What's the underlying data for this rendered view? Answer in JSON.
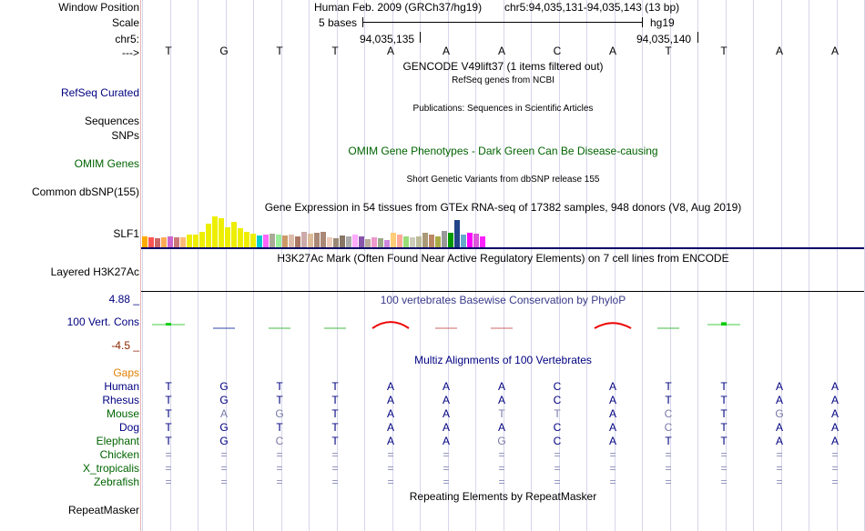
{
  "header": {
    "labels": {
      "window_position": "Window Position",
      "scale": "Scale",
      "chrom": "chr5:",
      "strand": "--->"
    },
    "assembly": "Human Feb. 2009 (GRCh37/hg19)",
    "position": "chr5:94,035,131-94,035,143 (13 bp)",
    "scale_bases": "5 bases",
    "scale_db": "hg19",
    "coord_left": "94,035,135",
    "coord_right": "94,035,140"
  },
  "bases": [
    "T",
    "G",
    "T",
    "T",
    "A",
    "A",
    "A",
    "C",
    "A",
    "T",
    "T",
    "A",
    "A"
  ],
  "tracks": {
    "gencode": {
      "title": "GENCODE V49lift37 (1 items filtered out)"
    },
    "refseq": {
      "label": "RefSeq Curated",
      "title": "RefSeq genes from NCBI"
    },
    "publications": {
      "label_sequences": "Sequences",
      "label_snps": "SNPs",
      "title": "Publications: Sequences in Scientific Articles"
    },
    "omim": {
      "label": "OMIM Genes",
      "title": "OMIM Gene Phenotypes - Dark Green Can Be Disease-causing"
    },
    "dbsnp": {
      "label": "Common dbSNP(155)",
      "title": "Short Genetic Variants from dbSNP release 155"
    },
    "gtex": {
      "label": "SLF1",
      "title": "Gene Expression in 54 tissues from GTEx RNA-seq of 17382 samples, 948 donors (V8, Aug 2019)",
      "tissue_values": [
        12,
        11,
        10,
        11,
        12,
        11,
        11,
        14,
        14,
        17,
        26,
        34,
        32,
        22,
        28,
        21,
        17,
        15,
        13,
        14,
        15,
        14,
        13,
        14,
        12,
        17,
        15,
        16,
        17,
        11,
        10,
        13,
        12,
        14,
        12,
        9,
        11,
        10,
        8,
        16,
        14,
        12,
        11,
        12,
        16,
        14,
        12,
        18,
        16,
        30,
        14,
        16,
        15,
        12
      ],
      "tissue_colors": [
        "#ffaa00",
        "#ff5555",
        "#cc6666",
        "#ffaa55",
        "#cc66cc",
        "#cc7777",
        "#ffbb77",
        "#eeee00",
        "#eeee00",
        "#eeee00",
        "#eeee00",
        "#eeee00",
        "#eeee00",
        "#eeee00",
        "#eeee00",
        "#eeee00",
        "#eeee00",
        "#eeee00",
        "#00cccc",
        "#ff66ff",
        "#aaaa99",
        "#99ee99",
        "#cc9966",
        "#ddbbaa",
        "#aa7766",
        "#ccaaaa",
        "#ddbb99",
        "#aa8877",
        "#aa8877",
        "#eeccbb",
        "#998877",
        "#887766",
        "#aaaaaa",
        "#ffaaff",
        "#8855aa",
        "#bbaa99",
        "#ee99cc",
        "#99aa88",
        "#cc88dd",
        "#ffcc77",
        "#ffaa99",
        "#99dd77",
        "#ccccbb",
        "#bbbb99",
        "#aa9977",
        "#bb8866",
        "#aaaa44",
        "#999999",
        "#009900",
        "#224488",
        "#66aacc",
        "#ff00ff",
        "#dd55dd",
        "#ff22ff"
      ]
    },
    "h3k27ac": {
      "label": "Layered H3K27Ac",
      "title": "H3K27Ac Mark (Often Found Near Active Regulatory Elements) on 7 cell lines from ENCODE"
    },
    "phylop": {
      "label": "100 Vert. Cons",
      "max_label": "4.88 _",
      "min_label": "-4.5 _",
      "title": "100 vertebrates Basewise Conservation by PhyloP",
      "values": [
        0.9,
        -0.1,
        -0.6,
        -0.4,
        3.5,
        -0.5,
        -0.5,
        0,
        2.7,
        -0.6,
        1.3,
        0,
        0
      ]
    },
    "multiz": {
      "label_gaps": "Gaps",
      "title": "Multiz Alignments of 100 Vertebrates",
      "species": [
        {
          "name": "Human",
          "seq": [
            "T",
            "G",
            "T",
            "T",
            "A",
            "A",
            "A",
            "C",
            "A",
            "T",
            "T",
            "A",
            "A"
          ]
        },
        {
          "name": "Rhesus",
          "seq": [
            "T",
            "G",
            "T",
            "T",
            "A",
            "A",
            "A",
            "C",
            "A",
            "T",
            "T",
            "A",
            "A"
          ]
        },
        {
          "name": "Mouse",
          "seq": [
            "T",
            "A",
            "G",
            "T",
            "A",
            "A",
            "T",
            "T",
            "A",
            "C",
            "T",
            "G",
            "A"
          ]
        },
        {
          "name": "Dog",
          "seq": [
            "T",
            "G",
            "T",
            "T",
            "A",
            "A",
            "A",
            "C",
            "A",
            "C",
            "T",
            "A",
            "A"
          ]
        },
        {
          "name": "Elephant",
          "seq": [
            "T",
            "G",
            "C",
            "T",
            "A",
            "A",
            "G",
            "C",
            "A",
            "T",
            "T",
            "A",
            "A"
          ]
        },
        {
          "name": "Chicken",
          "seq": [
            "=",
            "=",
            "=",
            "=",
            "=",
            "=",
            "=",
            "=",
            "=",
            "=",
            "=",
            "=",
            "="
          ]
        },
        {
          "name": "X_tropicalis",
          "seq": [
            "=",
            "=",
            "=",
            "=",
            "=",
            "=",
            "=",
            "=",
            "=",
            "=",
            "=",
            "=",
            "="
          ]
        },
        {
          "name": "Zebrafish",
          "seq": [
            "=",
            "=",
            "=",
            "=",
            "=",
            "=",
            "=",
            "=",
            "=",
            "=",
            "=",
            "=",
            "="
          ]
        }
      ]
    },
    "repeatmasker": {
      "label": "RepeatMasker",
      "title": "Repeating Elements by RepeatMasker"
    }
  },
  "colors": {
    "navy": "#000080",
    "green": "#006400",
    "orange": "#e08000",
    "phylop_title": "#3a3a8a",
    "phylop_min": "#8b2500",
    "mismatch": "#7a7aa8",
    "gap": "#8a8ab8",
    "gtex_rule": "#000066"
  }
}
